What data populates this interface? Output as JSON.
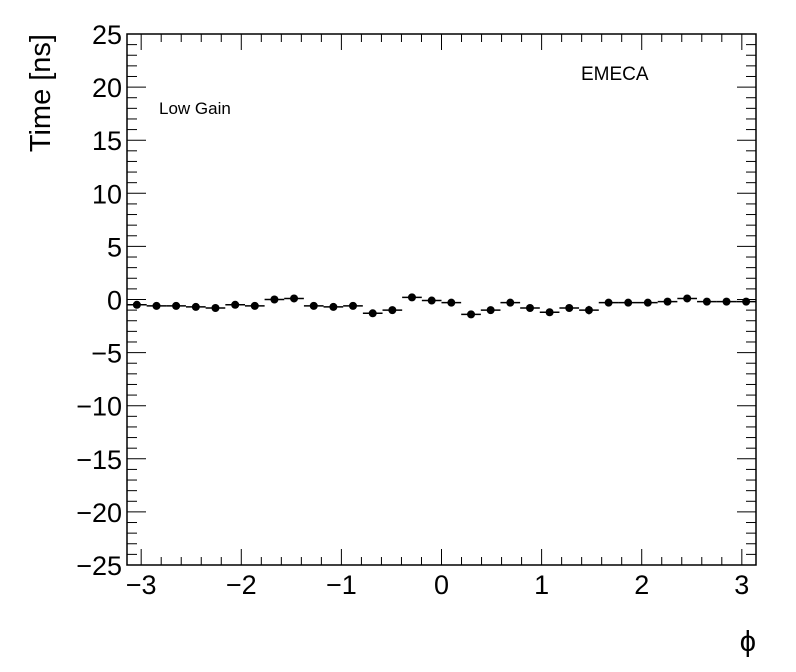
{
  "chart_data": {
    "type": "scatter",
    "xlabel": "ϕ",
    "ylabel": "Time [ns]",
    "xlim": [
      -3.1416,
      3.1416
    ],
    "ylim": [
      -25,
      25
    ],
    "x_ticks": [
      -3,
      -2,
      -1,
      0,
      1,
      2,
      3
    ],
    "x_tick_labels": [
      "−3",
      "−2",
      "−1",
      "0",
      "1",
      "2",
      "3"
    ],
    "y_ticks": [
      -25,
      -20,
      -15,
      -10,
      -5,
      0,
      5,
      10,
      15,
      20,
      25
    ],
    "y_tick_labels": [
      "−25",
      "−20",
      "−15",
      "−10",
      "−5",
      "0",
      "5",
      "10",
      "15",
      "20",
      "25"
    ],
    "grid": false,
    "annotations": [
      "EMECA",
      "Low Gain"
    ],
    "marker_color": "#000000",
    "series": [
      {
        "x_bin_width": 0.19635,
        "x": [
          -3.043,
          -2.847,
          -2.651,
          -2.454,
          -2.258,
          -2.061,
          -1.865,
          -1.669,
          -1.473,
          -1.276,
          -1.08,
          -0.884,
          -0.687,
          -0.491,
          -0.295,
          -0.098,
          0.098,
          0.295,
          0.491,
          0.687,
          0.884,
          1.08,
          1.276,
          1.473,
          1.669,
          1.865,
          2.061,
          2.258,
          2.454,
          2.651,
          2.847,
          3.043
        ],
        "y": [
          -0.5,
          -0.6,
          -0.6,
          -0.7,
          -0.8,
          -0.5,
          -0.6,
          0.0,
          0.1,
          -0.6,
          -0.7,
          -0.6,
          -1.3,
          -1.0,
          0.2,
          -0.1,
          -0.3,
          -1.4,
          -1.0,
          -0.3,
          -0.8,
          -1.2,
          -0.8,
          -1.0,
          -0.3,
          -0.3,
          -0.3,
          -0.2,
          0.1,
          -0.2,
          -0.2,
          -0.2
        ],
        "y_err": [
          0.2,
          0.2,
          0.2,
          0.2,
          0.2,
          0.2,
          0.2,
          0.2,
          0.2,
          0.2,
          0.2,
          0.2,
          0.3,
          0.3,
          0.2,
          0.2,
          0.2,
          0.3,
          0.3,
          0.2,
          0.2,
          0.3,
          0.2,
          0.4,
          0.2,
          0.2,
          0.2,
          0.2,
          0.2,
          0.2,
          0.2,
          0.2
        ]
      }
    ]
  }
}
